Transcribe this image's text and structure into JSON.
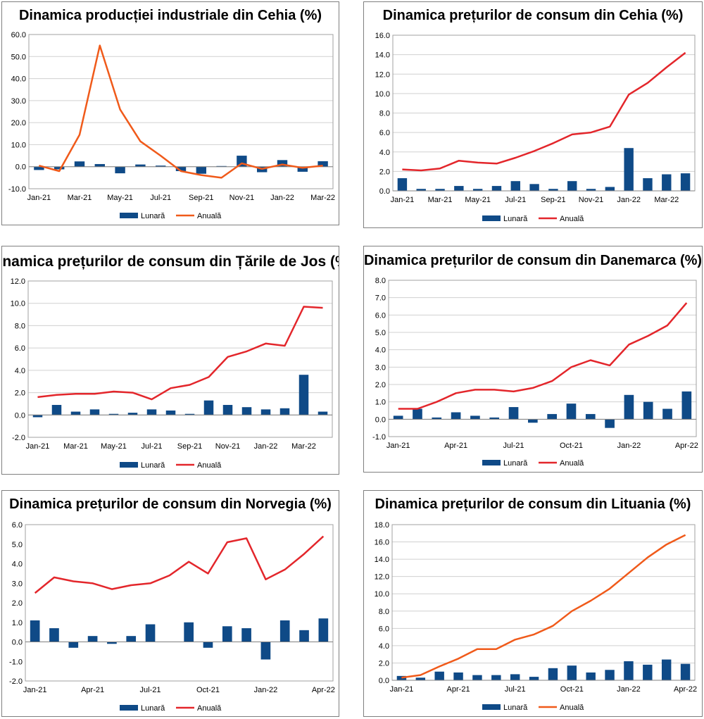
{
  "legend": {
    "monthly": "Lunară",
    "annual": "Anuală"
  },
  "chart_data": [
    {
      "type": "bar+line",
      "title": "Dinamica producției industriale din Cehia (%)",
      "x": [
        "Jan-21",
        "Feb-21",
        "Mar-21",
        "Apr-21",
        "May-21",
        "Jun-21",
        "Jul-21",
        "Aug-21",
        "Sep-21",
        "Oct-21",
        "Nov-21",
        "Dec-21",
        "Jan-22",
        "Feb-22",
        "Mar-22"
      ],
      "tick_labels": [
        "Jan-21",
        "",
        "Mar-21",
        "",
        "May-21",
        "",
        "Jul-21",
        "",
        "Sep-21",
        "",
        "Nov-21",
        "",
        "Jan-22",
        "",
        "Mar-22"
      ],
      "ylim": [
        -10,
        60
      ],
      "ystep": 10,
      "ydecimals": 1,
      "series": [
        {
          "name": "Lunară",
          "kind": "bar",
          "values": [
            -1.5,
            -1.2,
            2.4,
            1.2,
            -3.0,
            1.0,
            0.5,
            -2.0,
            -3.2,
            0.3,
            5.0,
            -2.5,
            3.0,
            -2.3,
            2.5
          ]
        },
        {
          "name": "Anuală",
          "kind": "line",
          "values": [
            0.5,
            -2.0,
            14.5,
            55.0,
            26.0,
            11.5,
            5.0,
            -2.0,
            -3.8,
            -5.0,
            1.5,
            -1.0,
            1.0,
            -0.5,
            0.5
          ]
        }
      ],
      "bar_color": "#0f4a87",
      "line_color": "#f05a1a",
      "grid": true,
      "legend_position": "bottom"
    },
    {
      "type": "bar+line",
      "title": "Dinamica prețurilor de consum din Cehia (%)",
      "x": [
        "Jan-21",
        "Feb-21",
        "Mar-21",
        "Apr-21",
        "May-21",
        "Jun-21",
        "Jul-21",
        "Aug-21",
        "Sep-21",
        "Oct-21",
        "Nov-21",
        "Dec-21",
        "Jan-22",
        "Feb-22",
        "Mar-22",
        "Apr-22"
      ],
      "tick_labels": [
        "Jan-21",
        "",
        "Mar-21",
        "",
        "May-21",
        "",
        "Jul-21",
        "",
        "Sep-21",
        "",
        "Nov-21",
        "",
        "Jan-22",
        "",
        "Mar-22",
        ""
      ],
      "ylim": [
        0,
        16
      ],
      "ystep": 2,
      "ydecimals": 1,
      "series": [
        {
          "name": "Lunară",
          "kind": "bar",
          "values": [
            1.3,
            0.2,
            0.2,
            0.5,
            0.2,
            0.5,
            1.0,
            0.7,
            0.2,
            1.0,
            0.2,
            0.4,
            4.4,
            1.3,
            1.7,
            1.8
          ]
        },
        {
          "name": "Anuală",
          "kind": "line",
          "values": [
            2.2,
            2.1,
            2.3,
            3.1,
            2.9,
            2.8,
            3.4,
            4.1,
            4.9,
            5.8,
            6.0,
            6.6,
            9.9,
            11.1,
            12.7,
            14.2
          ]
        }
      ],
      "bar_color": "#0f4a87",
      "line_color": "#e3262b",
      "grid": true,
      "legend_position": "bottom"
    },
    {
      "type": "bar+line",
      "title": "Dinamica prețurilor de consum din Țările de Jos (%)",
      "x": [
        "Jan-21",
        "Feb-21",
        "Mar-21",
        "Apr-21",
        "May-21",
        "Jun-21",
        "Jul-21",
        "Aug-21",
        "Sep-21",
        "Oct-21",
        "Nov-21",
        "Dec-21",
        "Jan-22",
        "Feb-22",
        "Mar-22",
        "Apr-22"
      ],
      "tick_labels": [
        "Jan-21",
        "",
        "Mar-21",
        "",
        "May-21",
        "",
        "Jul-21",
        "",
        "Sep-21",
        "",
        "Nov-21",
        "",
        "Jan-22",
        "",
        "Mar-22",
        ""
      ],
      "ylim": [
        -2,
        12
      ],
      "ystep": 2,
      "ydecimals": 1,
      "series": [
        {
          "name": "Lunară",
          "kind": "bar",
          "values": [
            -0.2,
            0.9,
            0.3,
            0.5,
            0.1,
            0.2,
            0.5,
            0.4,
            0.1,
            1.3,
            0.9,
            0.7,
            0.5,
            0.6,
            3.6,
            0.3
          ]
        },
        {
          "name": "Anuală",
          "kind": "line",
          "values": [
            1.6,
            1.8,
            1.9,
            1.9,
            2.1,
            2.0,
            1.4,
            2.4,
            2.7,
            3.4,
            5.2,
            5.7,
            6.4,
            6.2,
            9.7,
            9.6
          ]
        }
      ],
      "bar_color": "#0f4a87",
      "line_color": "#e3262b",
      "grid": true,
      "legend_position": "bottom"
    },
    {
      "type": "bar+line",
      "title": "Dinamica prețurilor de consum din Danemarca (%)",
      "x": [
        "Jan-21",
        "Feb-21",
        "Mar-21",
        "Apr-21",
        "May-21",
        "Jun-21",
        "Jul-21",
        "Aug-21",
        "Sep-21",
        "Oct-21",
        "Nov-21",
        "Dec-21",
        "Jan-22",
        "Feb-22",
        "Mar-22",
        "Apr-22"
      ],
      "tick_labels": [
        "Jan-21",
        "",
        "",
        "Apr-21",
        "",
        "",
        "Jul-21",
        "",
        "",
        "Oct-21",
        "",
        "",
        "Jan-22",
        "",
        "",
        "Apr-22"
      ],
      "ylim": [
        -1,
        8
      ],
      "ystep": 1,
      "ydecimals": 1,
      "series": [
        {
          "name": "Lunară",
          "kind": "bar",
          "values": [
            0.2,
            0.6,
            0.1,
            0.4,
            0.2,
            0.1,
            0.7,
            -0.2,
            0.3,
            0.9,
            0.3,
            -0.5,
            1.4,
            1.0,
            0.6,
            1.6
          ]
        },
        {
          "name": "Anuală",
          "kind": "line",
          "values": [
            0.6,
            0.6,
            1.0,
            1.5,
            1.7,
            1.7,
            1.6,
            1.8,
            2.2,
            3.0,
            3.4,
            3.1,
            4.3,
            4.8,
            5.4,
            6.7
          ]
        }
      ],
      "bar_color": "#0f4a87",
      "line_color": "#e3262b",
      "grid": true,
      "legend_position": "bottom"
    },
    {
      "type": "bar+line",
      "title": "Dinamica prețurilor de consum din Norvegia (%)",
      "x": [
        "Jan-21",
        "Feb-21",
        "Mar-21",
        "Apr-21",
        "May-21",
        "Jun-21",
        "Jul-21",
        "Aug-21",
        "Sep-21",
        "Oct-21",
        "Nov-21",
        "Dec-21",
        "Jan-22",
        "Feb-22",
        "Mar-22",
        "Apr-22"
      ],
      "tick_labels": [
        "Jan-21",
        "",
        "",
        "Apr-21",
        "",
        "",
        "Jul-21",
        "",
        "",
        "Oct-21",
        "",
        "",
        "Jan-22",
        "",
        "",
        "Apr-22"
      ],
      "ylim": [
        -2,
        6
      ],
      "ystep": 1,
      "ydecimals": 1,
      "series": [
        {
          "name": "Lunară",
          "kind": "bar",
          "values": [
            1.1,
            0.7,
            -0.3,
            0.3,
            -0.1,
            0.3,
            0.9,
            0.0,
            1.0,
            -0.3,
            0.8,
            0.7,
            -0.9,
            1.1,
            0.6,
            1.2
          ]
        },
        {
          "name": "Anuală",
          "kind": "line",
          "values": [
            2.5,
            3.3,
            3.1,
            3.0,
            2.7,
            2.9,
            3.0,
            3.4,
            4.1,
            3.5,
            5.1,
            5.3,
            3.2,
            3.7,
            4.5,
            5.4
          ]
        }
      ],
      "bar_color": "#0f4a87",
      "line_color": "#e3262b",
      "grid": false,
      "legend_position": "bottom"
    },
    {
      "type": "bar+line",
      "title": "Dinamica prețurilor de consum din Lituania (%)",
      "x": [
        "Jan-21",
        "Feb-21",
        "Mar-21",
        "Apr-21",
        "May-21",
        "Jun-21",
        "Jul-21",
        "Aug-21",
        "Sep-21",
        "Oct-21",
        "Nov-21",
        "Dec-21",
        "Jan-22",
        "Feb-22",
        "Mar-22",
        "Apr-22"
      ],
      "tick_labels": [
        "Jan-21",
        "",
        "",
        "Apr-21",
        "",
        "",
        "Jul-21",
        "",
        "",
        "Oct-21",
        "",
        "",
        "Jan-22",
        "",
        "",
        "Apr-22"
      ],
      "ylim": [
        0,
        18
      ],
      "ystep": 2,
      "ydecimals": 1,
      "series": [
        {
          "name": "Lunară",
          "kind": "bar",
          "values": [
            0.5,
            0.3,
            1.0,
            0.9,
            0.6,
            0.6,
            0.7,
            0.4,
            1.4,
            1.7,
            0.9,
            1.2,
            2.2,
            1.8,
            2.4,
            1.9
          ]
        },
        {
          "name": "Anuală",
          "kind": "line",
          "values": [
            0.3,
            0.6,
            1.6,
            2.5,
            3.6,
            3.6,
            4.7,
            5.3,
            6.3,
            8.0,
            9.2,
            10.6,
            12.4,
            14.2,
            15.7,
            16.8
          ]
        }
      ],
      "bar_color": "#0f4a87",
      "line_color": "#f05a1a",
      "grid": true,
      "legend_position": "bottom"
    }
  ]
}
